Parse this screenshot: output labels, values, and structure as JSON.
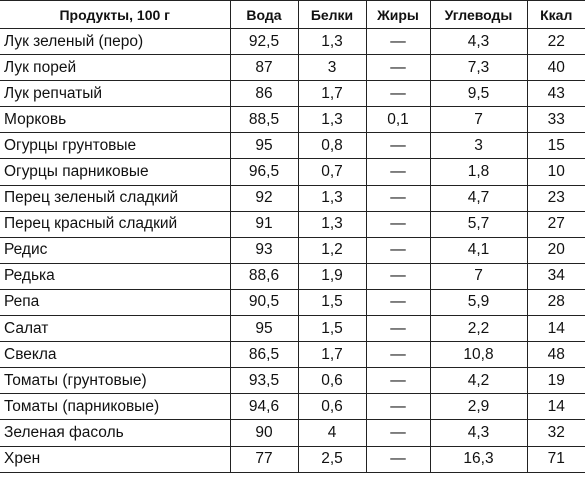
{
  "table": {
    "headers": [
      "Продукты, 100 г",
      "Вода",
      "Белки",
      "Жиры",
      "Углеводы",
      "Ккал"
    ],
    "rows": [
      [
        "Лук зеленый (перо)",
        "92,5",
        "1,3",
        "—",
        "4,3",
        "22"
      ],
      [
        "Лук порей",
        "87",
        "3",
        "—",
        "7,3",
        "40"
      ],
      [
        "Лук репчатый",
        "86",
        "1,7",
        "—",
        "9,5",
        "43"
      ],
      [
        "Морковь",
        "88,5",
        "1,3",
        "0,1",
        "7",
        "33"
      ],
      [
        "Огурцы грунтовые",
        "95",
        "0,8",
        "—",
        "3",
        "15"
      ],
      [
        "Огурцы парниковые",
        "96,5",
        "0,7",
        "—",
        "1,8",
        "10"
      ],
      [
        "Перец зеленый сладкий",
        "92",
        "1,3",
        "—",
        "4,7",
        "23"
      ],
      [
        "Перец красный сладкий",
        "91",
        "1,3",
        "—",
        "5,7",
        "27"
      ],
      [
        "Редис",
        "93",
        "1,2",
        "—",
        "4,1",
        "20"
      ],
      [
        "Редька",
        "88,6",
        "1,9",
        "—",
        "7",
        "34"
      ],
      [
        "Репа",
        "90,5",
        "1,5",
        "—",
        "5,9",
        "28"
      ],
      [
        "Салат",
        "95",
        "1,5",
        "—",
        "2,2",
        "14"
      ],
      [
        "Свекла",
        "86,5",
        "1,7",
        "—",
        "10,8",
        "48"
      ],
      [
        "Томаты (грунтовые)",
        "93,5",
        "0,6",
        "—",
        "4,2",
        "19"
      ],
      [
        "Томаты (парниковые)",
        "94,6",
        "0,6",
        "—",
        "2,9",
        "14"
      ],
      [
        "Зеленая фасоль",
        "90",
        "4",
        "—",
        "4,3",
        "32"
      ],
      [
        "Хрен",
        "77",
        "2,5",
        "—",
        "16,3",
        "71"
      ]
    ]
  }
}
